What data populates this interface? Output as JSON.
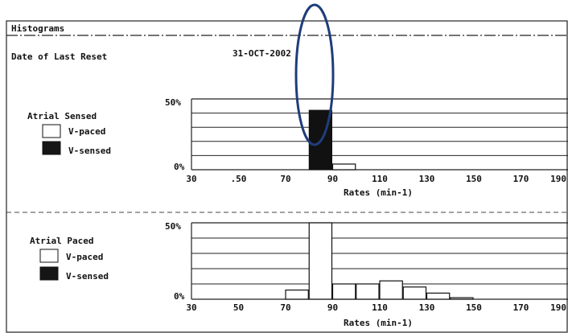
{
  "header": {
    "title": "Histograms",
    "reset_label": "Date of Last Reset",
    "reset_date": "31-OCT-2002"
  },
  "annotation": {
    "color": "#1f3d7a"
  },
  "chart_data": [
    {
      "type": "bar",
      "title": "Atrial Sensed",
      "legend": [
        "V-paced",
        "V-sensed"
      ],
      "xlabel": "Rates (min-1)",
      "xticks": [
        "30",
        ".50",
        "70",
        "90",
        "110",
        "130",
        "150",
        "170",
        "190"
      ],
      "xlim": [
        30,
        190
      ],
      "ylim": [
        0,
        50
      ],
      "yticks": [
        "0%",
        "50%"
      ],
      "bin_width": 10,
      "bins": [
        {
          "start": 80,
          "v_paced": 0,
          "v_sensed": 42
        },
        {
          "start": 90,
          "v_paced": 4,
          "v_sensed": 0
        }
      ]
    },
    {
      "type": "bar",
      "title": "Atrial Paced",
      "legend": [
        "V-paced",
        "V-sensed"
      ],
      "xlabel": "Rates (min-1)",
      "xticks": [
        "30",
        "50",
        "70",
        "90",
        "110",
        "130",
        "150",
        "170",
        "190"
      ],
      "xlim": [
        30,
        190
      ],
      "ylim": [
        0,
        50
      ],
      "yticks": [
        "0%",
        "50%"
      ],
      "bin_width": 10,
      "bins": [
        {
          "start": 70,
          "v_paced": 6,
          "v_sensed": 0
        },
        {
          "start": 80,
          "v_paced": 50,
          "v_sensed": 0
        },
        {
          "start": 90,
          "v_paced": 10,
          "v_sensed": 0
        },
        {
          "start": 100,
          "v_paced": 10,
          "v_sensed": 0
        },
        {
          "start": 110,
          "v_paced": 12,
          "v_sensed": 0
        },
        {
          "start": 120,
          "v_paced": 8,
          "v_sensed": 0
        },
        {
          "start": 130,
          "v_paced": 4,
          "v_sensed": 0
        },
        {
          "start": 140,
          "v_paced": 1,
          "v_sensed": 0
        }
      ]
    }
  ]
}
